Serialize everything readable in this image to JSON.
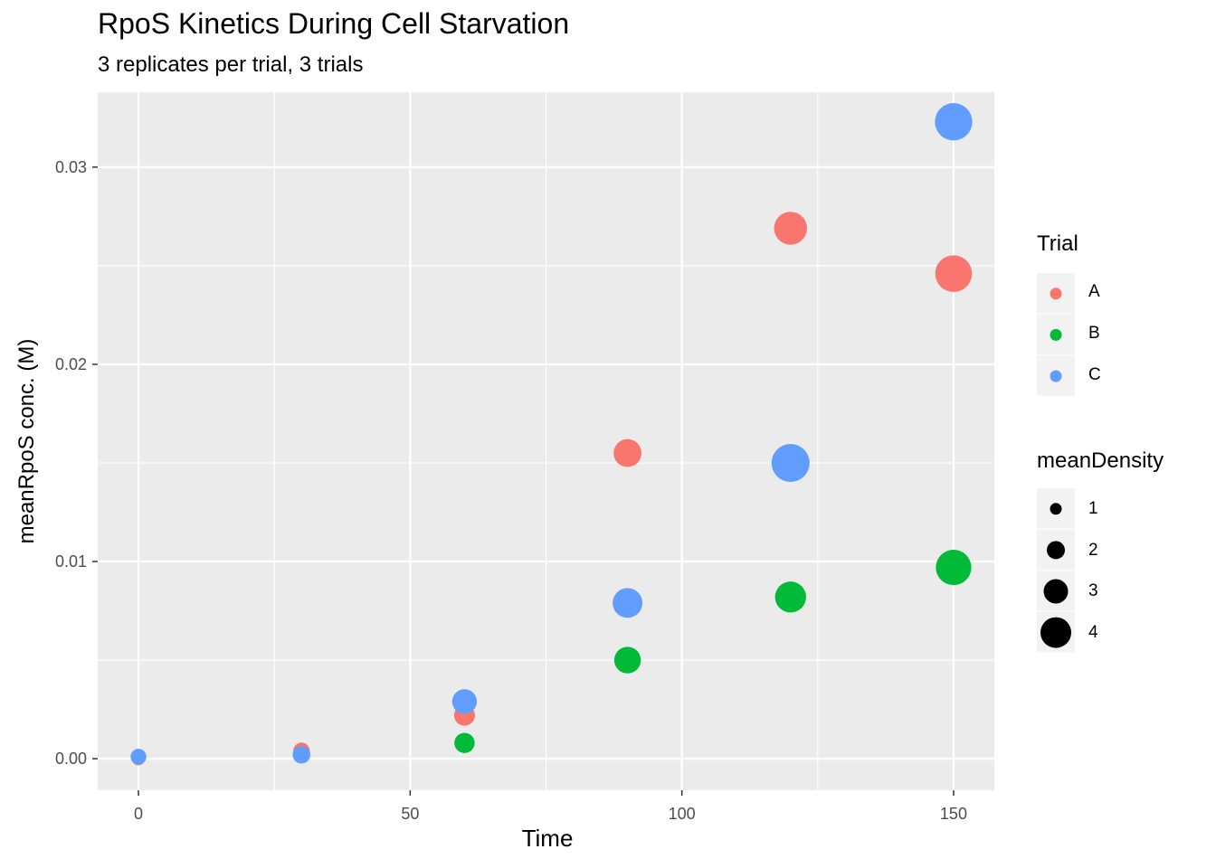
{
  "chart_data": {
    "type": "scatter",
    "title": "RpoS Kinetics During Cell Starvation",
    "subtitle": "3 replicates per trial, 3 trials",
    "xlabel": "Time",
    "ylabel": "meanRpoS conc. (M)",
    "xlim": [
      -7.5,
      157.5
    ],
    "ylim": [
      -0.0016,
      0.0338
    ],
    "x_ticks": [
      0,
      50,
      100,
      150
    ],
    "x_tick_labels": [
      "0",
      "50",
      "100",
      "150"
    ],
    "y_ticks": [
      0,
      0.01,
      0.02,
      0.03
    ],
    "y_tick_labels": [
      "0.00",
      "0.01",
      "0.02",
      "0.03"
    ],
    "x_minor": [
      25,
      75,
      125
    ],
    "y_minor": [
      0.005,
      0.015,
      0.025
    ],
    "grid": true,
    "legend_position": "right",
    "color_legend": {
      "title": "Trial",
      "entries": [
        {
          "label": "A",
          "color": "#F8766D"
        },
        {
          "label": "B",
          "color": "#00BA38"
        },
        {
          "label": "C",
          "color": "#619CFF"
        }
      ]
    },
    "size_legend": {
      "title": "meanDensity",
      "entries": [
        {
          "label": "1",
          "value": 1
        },
        {
          "label": "2",
          "value": 2
        },
        {
          "label": "3",
          "value": 3
        },
        {
          "label": "4",
          "value": 4
        }
      ]
    },
    "series": [
      {
        "name": "A",
        "color": "#F8766D",
        "points": [
          {
            "x": 0,
            "y": 0.0,
            "size": 0.1
          },
          {
            "x": 30,
            "y": 0.0004,
            "size": 0.6
          },
          {
            "x": 60,
            "y": 0.0022,
            "size": 1.3
          },
          {
            "x": 90,
            "y": 0.0155,
            "size": 2.4
          },
          {
            "x": 120,
            "y": 0.0269,
            "size": 3.2
          },
          {
            "x": 150,
            "y": 0.0246,
            "size": 3.8
          }
        ]
      },
      {
        "name": "B",
        "color": "#00BA38",
        "points": [
          {
            "x": 60,
            "y": 0.0008,
            "size": 1.2
          },
          {
            "x": 90,
            "y": 0.005,
            "size": 2.2
          },
          {
            "x": 120,
            "y": 0.0082,
            "size": 2.9
          },
          {
            "x": 150,
            "y": 0.0097,
            "size": 3.6
          }
        ]
      },
      {
        "name": "C",
        "color": "#619CFF",
        "points": [
          {
            "x": 0,
            "y": 0.0001,
            "size": 0.5
          },
          {
            "x": 30,
            "y": 0.0002,
            "size": 0.8
          },
          {
            "x": 60,
            "y": 0.0029,
            "size": 1.9
          },
          {
            "x": 90,
            "y": 0.0079,
            "size": 2.7
          },
          {
            "x": 120,
            "y": 0.015,
            "size": 4.0
          },
          {
            "x": 150,
            "y": 0.0323,
            "size": 3.9
          }
        ]
      }
    ]
  }
}
